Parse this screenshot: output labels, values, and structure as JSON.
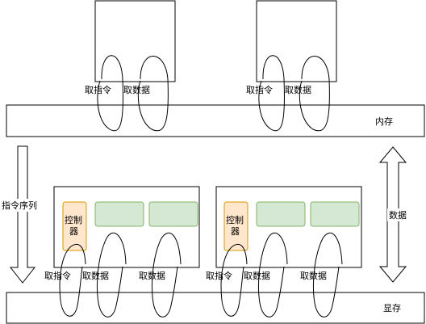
{
  "memory": {
    "label": "内存"
  },
  "vram": {
    "label": "显存"
  },
  "left_arrow": {
    "label": "指令序列"
  },
  "right_arrow": {
    "label": "数据"
  },
  "top_left": {
    "fetch_instr": "取指令",
    "fetch_data": "取数据"
  },
  "top_right": {
    "fetch_instr": "取指令",
    "fetch_data": "取数据"
  },
  "gpu_left": {
    "controller": "控制器",
    "fetch_instr": "取指令",
    "fetch_data_1": "取数据",
    "fetch_data_2": "取数据"
  },
  "gpu_right": {
    "controller": "控制器",
    "fetch_instr": "取指令",
    "fetch_data_1": "取数据",
    "fetch_data_2": "取数据"
  },
  "colors": {
    "controller_fill": "#ffe6cc",
    "controller_stroke": "#d79b00",
    "unit_fill": "#d5e8d4",
    "unit_stroke": "#82b366"
  }
}
